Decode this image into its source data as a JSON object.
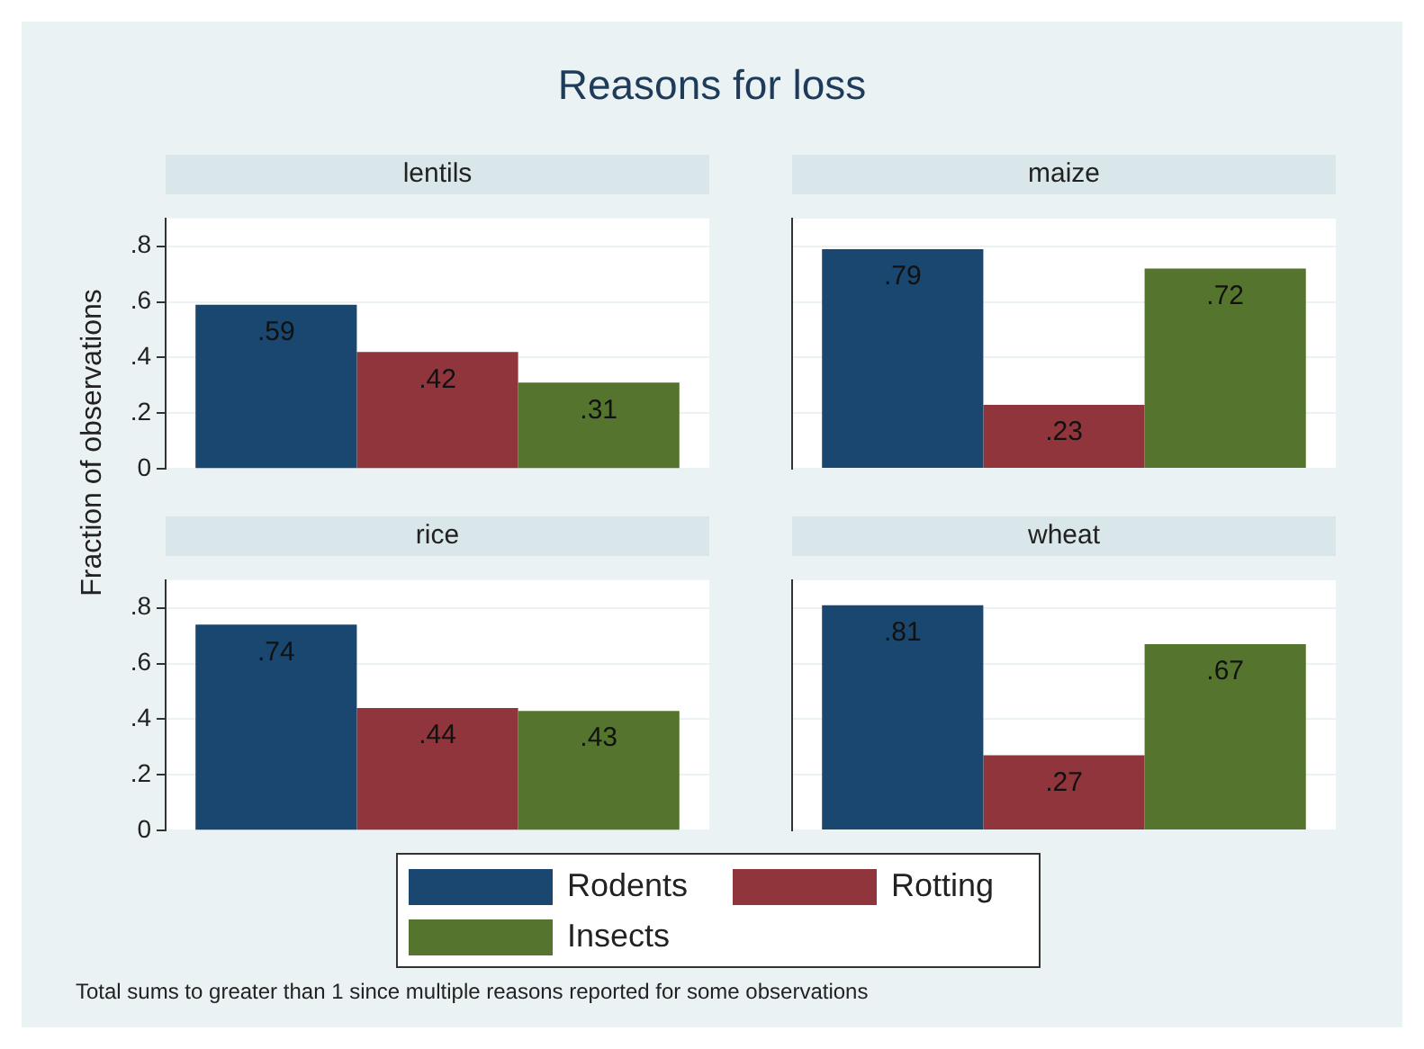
{
  "chart_data": [
    {
      "type": "other",
      "title": "Reasons for loss",
      "ylabel": "Fraction of observations",
      "annotations": [
        "Total sums to greater than 1 since multiple reasons reported for some observations"
      ]
    },
    {
      "type": "bar",
      "title": "lentils",
      "categories": [
        null
      ],
      "grid": "y",
      "ylim": [
        0,
        0.9
      ],
      "yticks": [
        0,
        {
          "value": 0.2,
          "label": ".2"
        },
        {
          "value": 0.4,
          "label": ".4"
        },
        {
          "value": 0.6,
          "label": ".6"
        },
        {
          "value": 0.8,
          "label": ".8"
        }
      ],
      "series": [
        {
          "color": "#1a476f",
          "values": [
            0.59
          ],
          "value_labels": [
            ".59"
          ]
        },
        {
          "color": "#90353b",
          "values": [
            0.42
          ],
          "value_labels": [
            ".42"
          ]
        },
        {
          "color": "#55752f",
          "values": [
            0.31
          ],
          "value_labels": [
            ".31"
          ]
        }
      ]
    },
    {
      "type": "bar",
      "title": "maize",
      "categories": [
        null
      ],
      "series": [
        {
          "color": "#1a476f",
          "values": [
            0.79
          ],
          "value_labels": [
            ".79"
          ]
        },
        {
          "color": "#90353b",
          "values": [
            0.23
          ],
          "value_labels": [
            ".23"
          ]
        },
        {
          "color": "#55752f",
          "values": [
            0.72
          ],
          "value_labels": [
            ".72"
          ]
        }
      ]
    },
    {
      "type": "bar",
      "title": "rice",
      "categories": [
        null
      ],
      "grid": "y",
      "legend": "bottom",
      "ylim": [
        0,
        0.9
      ],
      "yticks": [
        0,
        {
          "value": 0.2,
          "label": ".2"
        },
        {
          "value": 0.4,
          "label": ".4"
        },
        {
          "value": 0.6,
          "label": ".6"
        },
        {
          "value": 0.8,
          "label": ".8"
        }
      ],
      "series": [
        {
          "name": "Rodents",
          "color": "#1a476f",
          "values": [
            0.74
          ],
          "value_labels": [
            ".74"
          ]
        },
        {
          "name": "Rotting",
          "color": "#90353b",
          "values": [
            0.44
          ],
          "value_labels": [
            ".44"
          ]
        },
        {
          "name": "Insects",
          "color": "#55752f",
          "values": [
            0.43
          ],
          "value_labels": [
            ".43"
          ]
        }
      ]
    },
    {
      "type": "bar",
      "title": "wheat",
      "categories": [
        null
      ],
      "series": [
        {
          "color": "#1a476f",
          "values": [
            0.81
          ],
          "value_labels": [
            ".81"
          ]
        },
        {
          "color": "#90353b",
          "values": [
            0.27
          ],
          "value_labels": [
            ".27"
          ]
        },
        {
          "color": "#55752f",
          "values": [
            0.67
          ],
          "value_labels": [
            ".67"
          ]
        }
      ]
    }
  ]
}
